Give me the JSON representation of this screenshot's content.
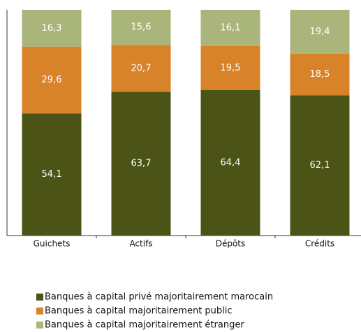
{
  "chart_data": {
    "type": "stacked_bar",
    "categories": [
      "Guichets",
      "Actifs",
      "Dépôts",
      "Crédits"
    ],
    "ylim": [
      0,
      100
    ],
    "series": [
      {
        "name": "Banques à capital privé majoritairement marocain",
        "color": "#4b5316",
        "values": [
          54.1,
          63.7,
          64.4,
          62.1
        ],
        "value_labels": [
          "54,1",
          "63,7",
          "64,4",
          "62,1"
        ]
      },
      {
        "name": "Banques à capital majoritairement public",
        "color": "#d8822a",
        "values": [
          29.6,
          20.7,
          19.5,
          18.5
        ],
        "value_labels": [
          "29,6",
          "20,7",
          "19,5",
          "18,5"
        ]
      },
      {
        "name": "Banques à capital majoritairement étranger",
        "color": "#aab57b",
        "values": [
          16.3,
          15.6,
          16.1,
          19.4
        ],
        "value_labels": [
          "16,3",
          "15,6",
          "16,1",
          "19,4"
        ]
      }
    ]
  }
}
